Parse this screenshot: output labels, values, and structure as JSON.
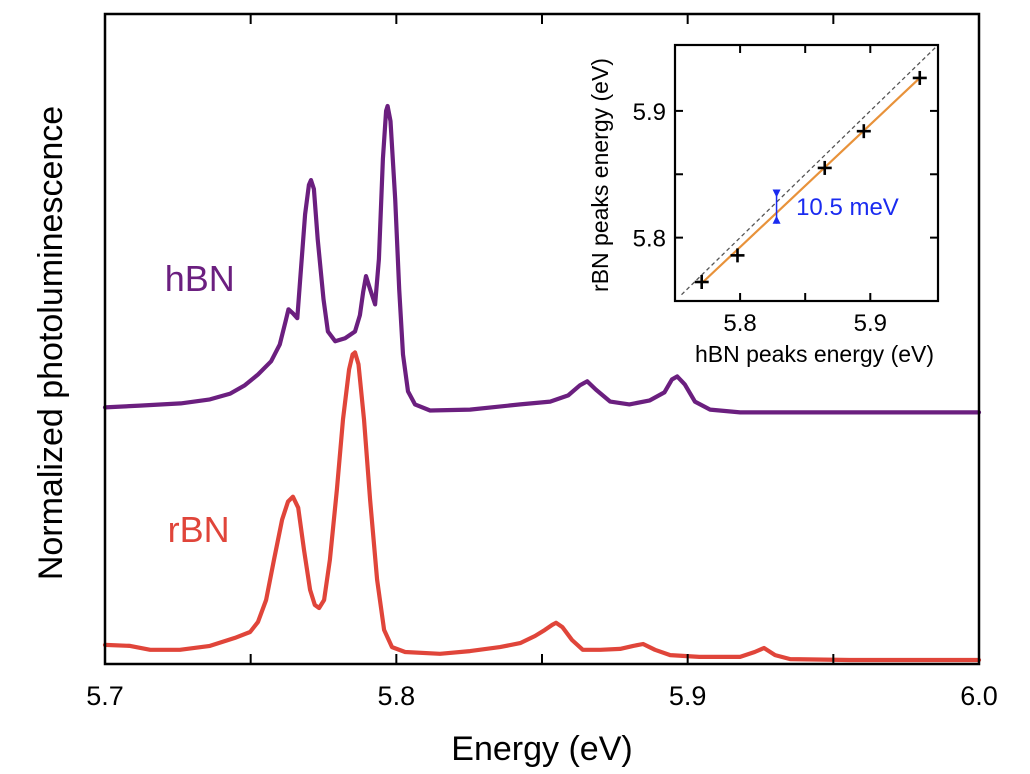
{
  "chart_data": [
    {
      "id": "main",
      "type": "line",
      "title": "",
      "xlabel": "Energy (eV)",
      "ylabel": "Normalized photoluminescence",
      "xlim": [
        5.7,
        6.0
      ],
      "ylim": [
        -0.013,
        2.1
      ],
      "x_ticks": [
        5.7,
        5.75,
        5.8,
        5.85,
        5.9,
        5.95,
        6.0
      ],
      "x_tick_labels": [
        {
          "value": 5.7,
          "label": "5.7"
        },
        {
          "value": 5.8,
          "label": "5.8"
        },
        {
          "value": 5.9,
          "label": "5.9"
        },
        {
          "value": 6.0,
          "label": "6.0"
        }
      ],
      "y_ticks_shown": false,
      "grid": false,
      "series": [
        {
          "name": "hBN",
          "label": "hBN",
          "color": "#6B1F7F",
          "label_position": {
            "x": 5.7205,
            "y": 1.2
          },
          "points": [
            [
              5.7,
              0.821
            ],
            [
              5.712,
              0.827
            ],
            [
              5.726,
              0.834
            ],
            [
              5.736,
              0.847
            ],
            [
              5.743,
              0.866
            ],
            [
              5.748,
              0.893
            ],
            [
              5.7525,
              0.928
            ],
            [
              5.757,
              0.971
            ],
            [
              5.76,
              1.026
            ],
            [
              5.762,
              1.101
            ],
            [
              5.763,
              1.14
            ],
            [
              5.7645,
              1.127
            ],
            [
              5.766,
              1.111
            ],
            [
              5.767,
              1.238
            ],
            [
              5.7687,
              1.449
            ],
            [
              5.77,
              1.544
            ],
            [
              5.7707,
              1.56
            ],
            [
              5.7717,
              1.531
            ],
            [
              5.773,
              1.368
            ],
            [
              5.775,
              1.173
            ],
            [
              5.7765,
              1.068
            ],
            [
              5.779,
              1.036
            ],
            [
              5.7824,
              1.046
            ],
            [
              5.7858,
              1.068
            ],
            [
              5.7875,
              1.121
            ],
            [
              5.7886,
              1.195
            ],
            [
              5.7896,
              1.248
            ],
            [
              5.791,
              1.205
            ],
            [
              5.7927,
              1.156
            ],
            [
              5.794,
              1.303
            ],
            [
              5.7954,
              1.629
            ],
            [
              5.7965,
              1.785
            ],
            [
              5.797,
              1.801
            ],
            [
              5.798,
              1.752
            ],
            [
              5.7996,
              1.498
            ],
            [
              5.801,
              1.205
            ],
            [
              5.8023,
              0.993
            ],
            [
              5.804,
              0.873
            ],
            [
              5.8064,
              0.831
            ],
            [
              5.8116,
              0.811
            ],
            [
              5.8253,
              0.814
            ],
            [
              5.8425,
              0.831
            ],
            [
              5.8528,
              0.84
            ],
            [
              5.859,
              0.86
            ],
            [
              5.863,
              0.893
            ],
            [
              5.8655,
              0.906
            ],
            [
              5.8685,
              0.879
            ],
            [
              5.8734,
              0.84
            ],
            [
              5.88,
              0.831
            ],
            [
              5.887,
              0.844
            ],
            [
              5.892,
              0.87
            ],
            [
              5.8946,
              0.912
            ],
            [
              5.8964,
              0.922
            ],
            [
              5.899,
              0.896
            ],
            [
              5.9025,
              0.84
            ],
            [
              5.9077,
              0.814
            ],
            [
              5.918,
              0.805
            ],
            [
              5.9386,
              0.805
            ],
            [
              5.973,
              0.805
            ],
            [
              6.0,
              0.805
            ]
          ]
        },
        {
          "name": "rBN",
          "label": "rBN",
          "color": "#E0453A",
          "label_position": {
            "x": 5.7215,
            "y": 0.384
          },
          "points": [
            [
              5.7,
              0.049
            ],
            [
              5.7086,
              0.046
            ],
            [
              5.7155,
              0.033
            ],
            [
              5.7257,
              0.033
            ],
            [
              5.736,
              0.046
            ],
            [
              5.7446,
              0.072
            ],
            [
              5.7498,
              0.091
            ],
            [
              5.7525,
              0.124
            ],
            [
              5.7553,
              0.195
            ],
            [
              5.758,
              0.326
            ],
            [
              5.7608,
              0.456
            ],
            [
              5.7628,
              0.515
            ],
            [
              5.7645,
              0.531
            ],
            [
              5.7663,
              0.495
            ],
            [
              5.7683,
              0.358
            ],
            [
              5.7704,
              0.228
            ],
            [
              5.772,
              0.179
            ],
            [
              5.7735,
              0.169
            ],
            [
              5.7752,
              0.195
            ],
            [
              5.7772,
              0.326
            ],
            [
              5.7796,
              0.554
            ],
            [
              5.7817,
              0.782
            ],
            [
              5.7838,
              0.945
            ],
            [
              5.785,
              0.993
            ],
            [
              5.7858,
              1.0
            ],
            [
              5.787,
              0.961
            ],
            [
              5.7889,
              0.782
            ],
            [
              5.791,
              0.521
            ],
            [
              5.7934,
              0.261
            ],
            [
              5.7958,
              0.098
            ],
            [
              5.7985,
              0.042
            ],
            [
              5.803,
              0.026
            ],
            [
              5.815,
              0.02
            ],
            [
              5.8253,
              0.029
            ],
            [
              5.8356,
              0.042
            ],
            [
              5.8425,
              0.055
            ],
            [
              5.8476,
              0.078
            ],
            [
              5.851,
              0.098
            ],
            [
              5.8535,
              0.114
            ],
            [
              5.8548,
              0.121
            ],
            [
              5.857,
              0.107
            ],
            [
              5.8603,
              0.065
            ],
            [
              5.864,
              0.033
            ],
            [
              5.87,
              0.033
            ],
            [
              5.8768,
              0.036
            ],
            [
              5.8813,
              0.046
            ],
            [
              5.8847,
              0.052
            ],
            [
              5.8888,
              0.033
            ],
            [
              5.894,
              0.016
            ],
            [
              5.904,
              0.01
            ],
            [
              5.918,
              0.01
            ],
            [
              5.923,
              0.026
            ],
            [
              5.9262,
              0.039
            ],
            [
              5.93,
              0.016
            ],
            [
              5.9352,
              0.003
            ],
            [
              5.9557,
              0.0
            ],
            [
              6.0,
              0.0
            ]
          ]
        }
      ]
    },
    {
      "id": "inset",
      "type": "scatter",
      "title": "",
      "xlabel": "hBN peaks energy (eV)",
      "ylabel": "rBN peaks energy (eV)",
      "xlim": [
        5.75,
        5.952
      ],
      "ylim": [
        5.75,
        5.952
      ],
      "x_ticks": [
        5.8,
        5.85,
        5.9
      ],
      "y_ticks": [
        5.8,
        5.85,
        5.9
      ],
      "x_tick_labels": [
        {
          "value": 5.8,
          "label": "5.8"
        },
        {
          "value": 5.9,
          "label": "5.9"
        }
      ],
      "y_tick_labels": [
        {
          "value": 5.8,
          "label": "5.8"
        },
        {
          "value": 5.9,
          "label": "5.9"
        }
      ],
      "grid": false,
      "points": {
        "marker": "plus",
        "color": "#000000",
        "values": [
          [
            5.7705,
            5.765
          ],
          [
            5.798,
            5.786
          ],
          [
            5.865,
            5.855
          ],
          [
            5.895,
            5.884
          ],
          [
            5.938,
            5.926
          ]
        ]
      },
      "fit_line": {
        "color": "#E8923A",
        "from": [
          5.7705,
          5.764
        ],
        "to": [
          5.938,
          5.926
        ]
      },
      "reference_line": {
        "style": "dashed",
        "color": "#555555",
        "equation": "y = x",
        "from": [
          5.755,
          5.755
        ],
        "to": [
          5.95,
          5.95
        ]
      },
      "annotation": {
        "text": "10.5 meV",
        "color": "#1A2BF0",
        "marker_x": 5.828,
        "marker_y_top": 5.838,
        "marker_y_bottom": 5.811,
        "text_x": 5.843,
        "text_y": 5.818
      }
    }
  ]
}
